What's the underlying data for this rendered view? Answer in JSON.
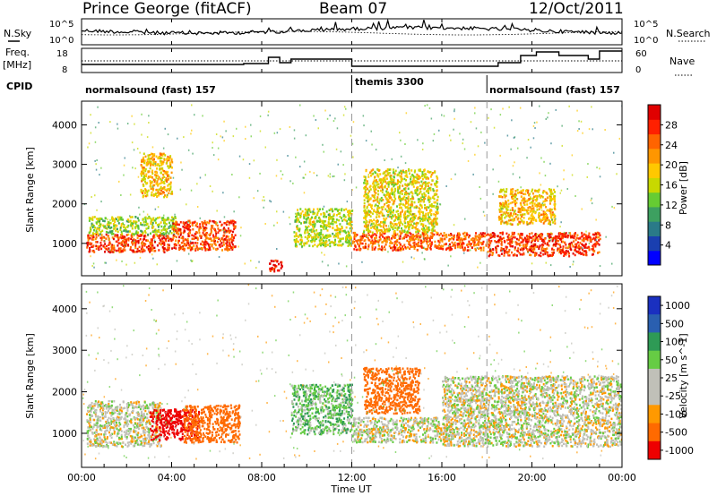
{
  "header": {
    "station": "Prince George (fitACF)",
    "beam": "Beam 07",
    "date": "12/Oct/2011"
  },
  "side_labels": {
    "nsky": "N.Sky",
    "nsearch": "N.Search",
    "freq": "Freq.",
    "freq_unit": "[MHz]",
    "nave": "Nave",
    "cpid": "CPID"
  },
  "noise_panel": {
    "left_ticks": [
      "10^5",
      "10^0"
    ],
    "right_ticks": [
      "10^5",
      "10^0"
    ]
  },
  "freq_panel": {
    "left_ticks": [
      "18",
      "8"
    ],
    "right_ticks": [
      "60",
      "0"
    ]
  },
  "cpid_segments": [
    {
      "label": "normalsound (fast) 157",
      "start_hour": 0
    },
    {
      "label": "themis 3300",
      "start_hour": 12
    },
    {
      "label": "normalsound (fast) 157",
      "start_hour": 18
    }
  ],
  "colors": {
    "power": [
      "#0000ff",
      "#1a3fb0",
      "#2a7a88",
      "#3da060",
      "#66cc33",
      "#c8d800",
      "#ffc800",
      "#ff9600",
      "#ff6400",
      "#ff2000",
      "#e00000"
    ],
    "velocity": [
      "#ee0000",
      "#ff6a00",
      "#ff9900",
      "#c0c0b8",
      "#c0c0b8",
      "#66cc44",
      "#2e9a55",
      "#2a5fb0",
      "#1a30c0"
    ]
  },
  "chart_data": [
    {
      "type": "heatmap",
      "name": "power",
      "ylabel": "Slant Range [km]",
      "xlabel": "Time UT",
      "x_ticks": [
        "00:00",
        "04:00",
        "08:00",
        "12:00",
        "16:00",
        "20:00",
        "00:00"
      ],
      "xlim_hours": [
        0,
        24
      ],
      "y_ticks": [
        1000,
        2000,
        3000,
        4000
      ],
      "ylim": [
        180,
        4600
      ],
      "colorbar_label": "Power [dB]",
      "colorbar_ticks": [
        4,
        8,
        12,
        16,
        20,
        24,
        28
      ],
      "colorbar_range": [
        0,
        32
      ],
      "echo_regions": [
        {
          "t0": 0.2,
          "t1": 4.0,
          "r0": 800,
          "r1": 1250,
          "value": 28
        },
        {
          "t0": 0.3,
          "t1": 4.2,
          "r0": 1250,
          "r1": 1700,
          "value": 14
        },
        {
          "t0": 4.0,
          "t1": 6.8,
          "r0": 850,
          "r1": 1600,
          "value": 27
        },
        {
          "t0": 2.6,
          "t1": 4.0,
          "r0": 2200,
          "r1": 3300,
          "value": 20
        },
        {
          "t0": 8.3,
          "t1": 8.9,
          "r0": 300,
          "r1": 600,
          "value": 31
        },
        {
          "t0": 9.4,
          "t1": 12.0,
          "r0": 950,
          "r1": 1900,
          "value": 16
        },
        {
          "t0": 12.0,
          "t1": 18.0,
          "r0": 850,
          "r1": 1300,
          "value": 26
        },
        {
          "t0": 12.5,
          "t1": 15.8,
          "r0": 1300,
          "r1": 2900,
          "value": 18
        },
        {
          "t0": 18.0,
          "t1": 23.0,
          "r0": 700,
          "r1": 1300,
          "value": 28
        },
        {
          "t0": 18.5,
          "t1": 21.0,
          "r0": 1500,
          "r1": 2400,
          "value": 20
        }
      ]
    },
    {
      "type": "heatmap",
      "name": "velocity",
      "ylabel": "Slant Range [km]",
      "xlabel": "Time UT",
      "x_ticks": [
        "00:00",
        "04:00",
        "08:00",
        "12:00",
        "16:00",
        "20:00",
        "00:00"
      ],
      "xlim_hours": [
        0,
        24
      ],
      "y_ticks": [
        1000,
        2000,
        3000,
        4000
      ],
      "ylim": [
        180,
        4600
      ],
      "colorbar_label": "Velocity [m s^-1]",
      "colorbar_ticks": [
        1000,
        500,
        100,
        50,
        25,
        -25,
        -100,
        -500,
        -1000
      ],
      "echo_regions": [
        {
          "t0": 0.2,
          "t1": 3.5,
          "r0": 700,
          "r1": 1800,
          "value": 0
        },
        {
          "t0": 3.0,
          "t1": 5.2,
          "r0": 850,
          "r1": 1600,
          "value": -900
        },
        {
          "t0": 4.5,
          "t1": 7.0,
          "r0": 800,
          "r1": 1700,
          "value": -300
        },
        {
          "t0": 9.3,
          "t1": 12.0,
          "r0": 1000,
          "r1": 2200,
          "value": 75
        },
        {
          "t0": 12.0,
          "t1": 16.5,
          "r0": 800,
          "r1": 1400,
          "value": 0
        },
        {
          "t0": 12.5,
          "t1": 15.0,
          "r0": 1500,
          "r1": 2600,
          "value": -300
        },
        {
          "t0": 16.0,
          "t1": 24.0,
          "r0": 700,
          "r1": 2400,
          "value": 0
        }
      ]
    }
  ]
}
